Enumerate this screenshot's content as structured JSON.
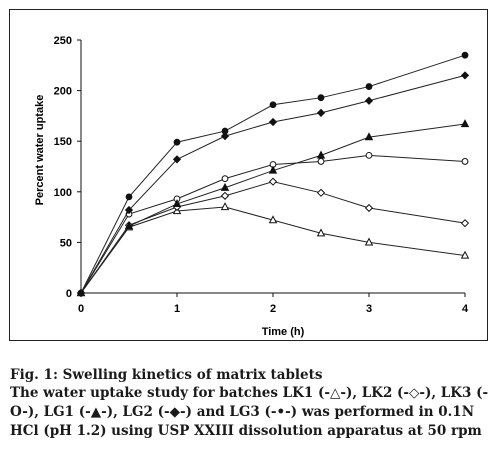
{
  "chart_data": {
    "type": "line",
    "xlabel": "Time (h)",
    "ylabel": "Percent water uptake",
    "xlim": [
      0,
      4
    ],
    "ylim": [
      0,
      250
    ],
    "xticks": [
      "0",
      "1",
      "2",
      "3",
      "4"
    ],
    "yticks": [
      "0",
      "50",
      "100",
      "150",
      "200",
      "250"
    ],
    "grid": false,
    "x": [
      0,
      0.5,
      1,
      1.5,
      2,
      2.5,
      3,
      4
    ],
    "series": [
      {
        "name": "LK1",
        "marker": "open-triangle",
        "values": [
          0,
          65,
          81,
          85,
          72,
          59,
          50,
          37
        ]
      },
      {
        "name": "LK2",
        "marker": "open-diamond",
        "values": [
          0,
          67,
          85,
          96,
          110,
          99,
          84,
          69
        ]
      },
      {
        "name": "LK3",
        "marker": "open-circle",
        "values": [
          0,
          78,
          93,
          113,
          127,
          130,
          136,
          130
        ]
      },
      {
        "name": "LG1",
        "marker": "filled-triangle",
        "values": [
          0,
          66,
          88,
          104,
          121,
          136,
          154,
          167
        ]
      },
      {
        "name": "LG2",
        "marker": "filled-diamond",
        "values": [
          0,
          82,
          132,
          155,
          169,
          178,
          190,
          215
        ]
      },
      {
        "name": "LG3",
        "marker": "filled-circle",
        "values": [
          0,
          95,
          149,
          160,
          186,
          193,
          204,
          235
        ]
      }
    ]
  },
  "caption": {
    "title": "Fig. 1: Swelling kinetics of matrix tablets",
    "description": "The water uptake study for batches LK1 (-△-), LK2 (-◇-), LK3 (-O-), LG1 (-▲-), LG2 (-◆-) and LG3 (-•-) was performed in 0.1N HCl (pH 1.2) using USP XXIII dissolution apparatus at 50 rpm"
  }
}
